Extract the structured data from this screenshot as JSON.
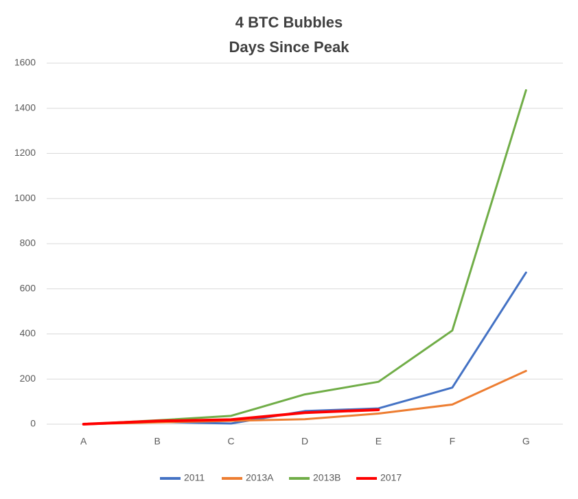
{
  "chart_data": {
    "type": "line",
    "title": "4 BTC Bubbles",
    "subtitle": "Days Since Peak",
    "categories": [
      "A",
      "B",
      "C",
      "D",
      "E",
      "F",
      "G"
    ],
    "series": [
      {
        "name": "2011",
        "color": "#4472c4",
        "values": [
          0,
          10,
          3,
          58,
          70,
          162,
          672
        ]
      },
      {
        "name": "2013A",
        "color": "#ed7d31",
        "values": [
          0,
          8,
          15,
          22,
          47,
          87,
          236
        ]
      },
      {
        "name": "2013B",
        "color": "#70ad47",
        "values": [
          0,
          17,
          37,
          132,
          188,
          415,
          1480
        ]
      },
      {
        "name": "2017",
        "color": "#ff0000",
        "values": [
          0,
          14,
          20,
          51,
          64,
          null,
          null
        ]
      }
    ],
    "ylim": [
      0,
      1600
    ],
    "yticks": [
      0,
      200,
      400,
      600,
      800,
      1000,
      1200,
      1400,
      1600
    ],
    "grid": true,
    "legend": "bottom"
  }
}
